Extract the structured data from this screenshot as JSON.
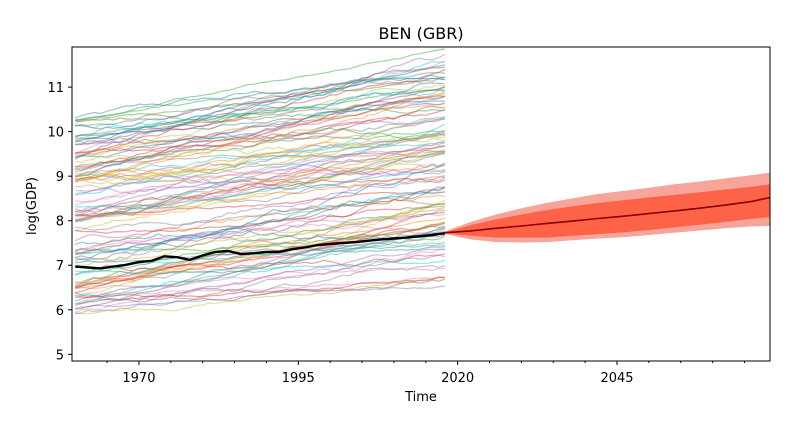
{
  "chart_data": {
    "type": "line",
    "title": "BEN (GBR)",
    "xlabel": "Time",
    "ylabel": "log(GDP)",
    "xlim": [
      1959.5,
      2069
    ],
    "ylim": [
      4.85,
      11.9
    ],
    "xticks": [
      1970,
      1995,
      2020,
      2045
    ],
    "yticks": [
      5,
      6,
      7,
      8,
      9,
      10,
      11
    ],
    "grid": false,
    "legend": "none",
    "colors": {
      "focus_line": "#000000",
      "forecast_median": "#8b0000",
      "band_inner": "#ff6347",
      "band_outer": "#f7a49a",
      "peer_palette": [
        "#1f77b4",
        "#ff7f0e",
        "#2ca02c",
        "#d62728",
        "#9467bd",
        "#8c564b",
        "#e377c2",
        "#7f7f7f",
        "#bcbd22",
        "#17becf"
      ]
    },
    "peer_countries_approx_count": 110,
    "focus_series": {
      "x": [
        1960,
        1962,
        1964,
        1966,
        1968,
        1970,
        1972,
        1974,
        1976,
        1978,
        1980,
        1982,
        1984,
        1986,
        1988,
        1990,
        1992,
        1994,
        1996,
        1998,
        2000,
        2002,
        2004,
        2006,
        2008,
        2010,
        2012,
        2014,
        2016,
        2018
      ],
      "y": [
        6.97,
        6.95,
        6.93,
        6.97,
        7.01,
        7.07,
        7.1,
        7.2,
        7.18,
        7.12,
        7.22,
        7.3,
        7.32,
        7.25,
        7.27,
        7.3,
        7.3,
        7.36,
        7.4,
        7.45,
        7.48,
        7.5,
        7.52,
        7.55,
        7.58,
        7.6,
        7.62,
        7.65,
        7.68,
        7.72
      ]
    },
    "forecast": {
      "x": [
        2018,
        2022,
        2026,
        2030,
        2034,
        2038,
        2042,
        2046,
        2050,
        2054,
        2058,
        2062,
        2066,
        2069
      ],
      "median": [
        7.73,
        7.77,
        7.83,
        7.88,
        7.94,
        7.99,
        8.05,
        8.1,
        8.16,
        8.22,
        8.28,
        8.35,
        8.43,
        8.52
      ],
      "inner_low": [
        7.72,
        7.66,
        7.62,
        7.62,
        7.62,
        7.66,
        7.7,
        7.74,
        7.79,
        7.85,
        7.91,
        7.97,
        8.04,
        8.08
      ],
      "inner_high": [
        7.74,
        7.9,
        8.03,
        8.14,
        8.24,
        8.32,
        8.4,
        8.46,
        8.52,
        8.58,
        8.64,
        8.7,
        8.76,
        8.82
      ],
      "outer_low": [
        7.7,
        7.58,
        7.52,
        7.51,
        7.52,
        7.56,
        7.6,
        7.63,
        7.68,
        7.73,
        7.78,
        7.83,
        7.87,
        7.88
      ],
      "outer_high": [
        7.76,
        7.97,
        8.14,
        8.28,
        8.4,
        8.5,
        8.6,
        8.67,
        8.74,
        8.82,
        8.88,
        8.95,
        9.02,
        9.08
      ]
    }
  }
}
